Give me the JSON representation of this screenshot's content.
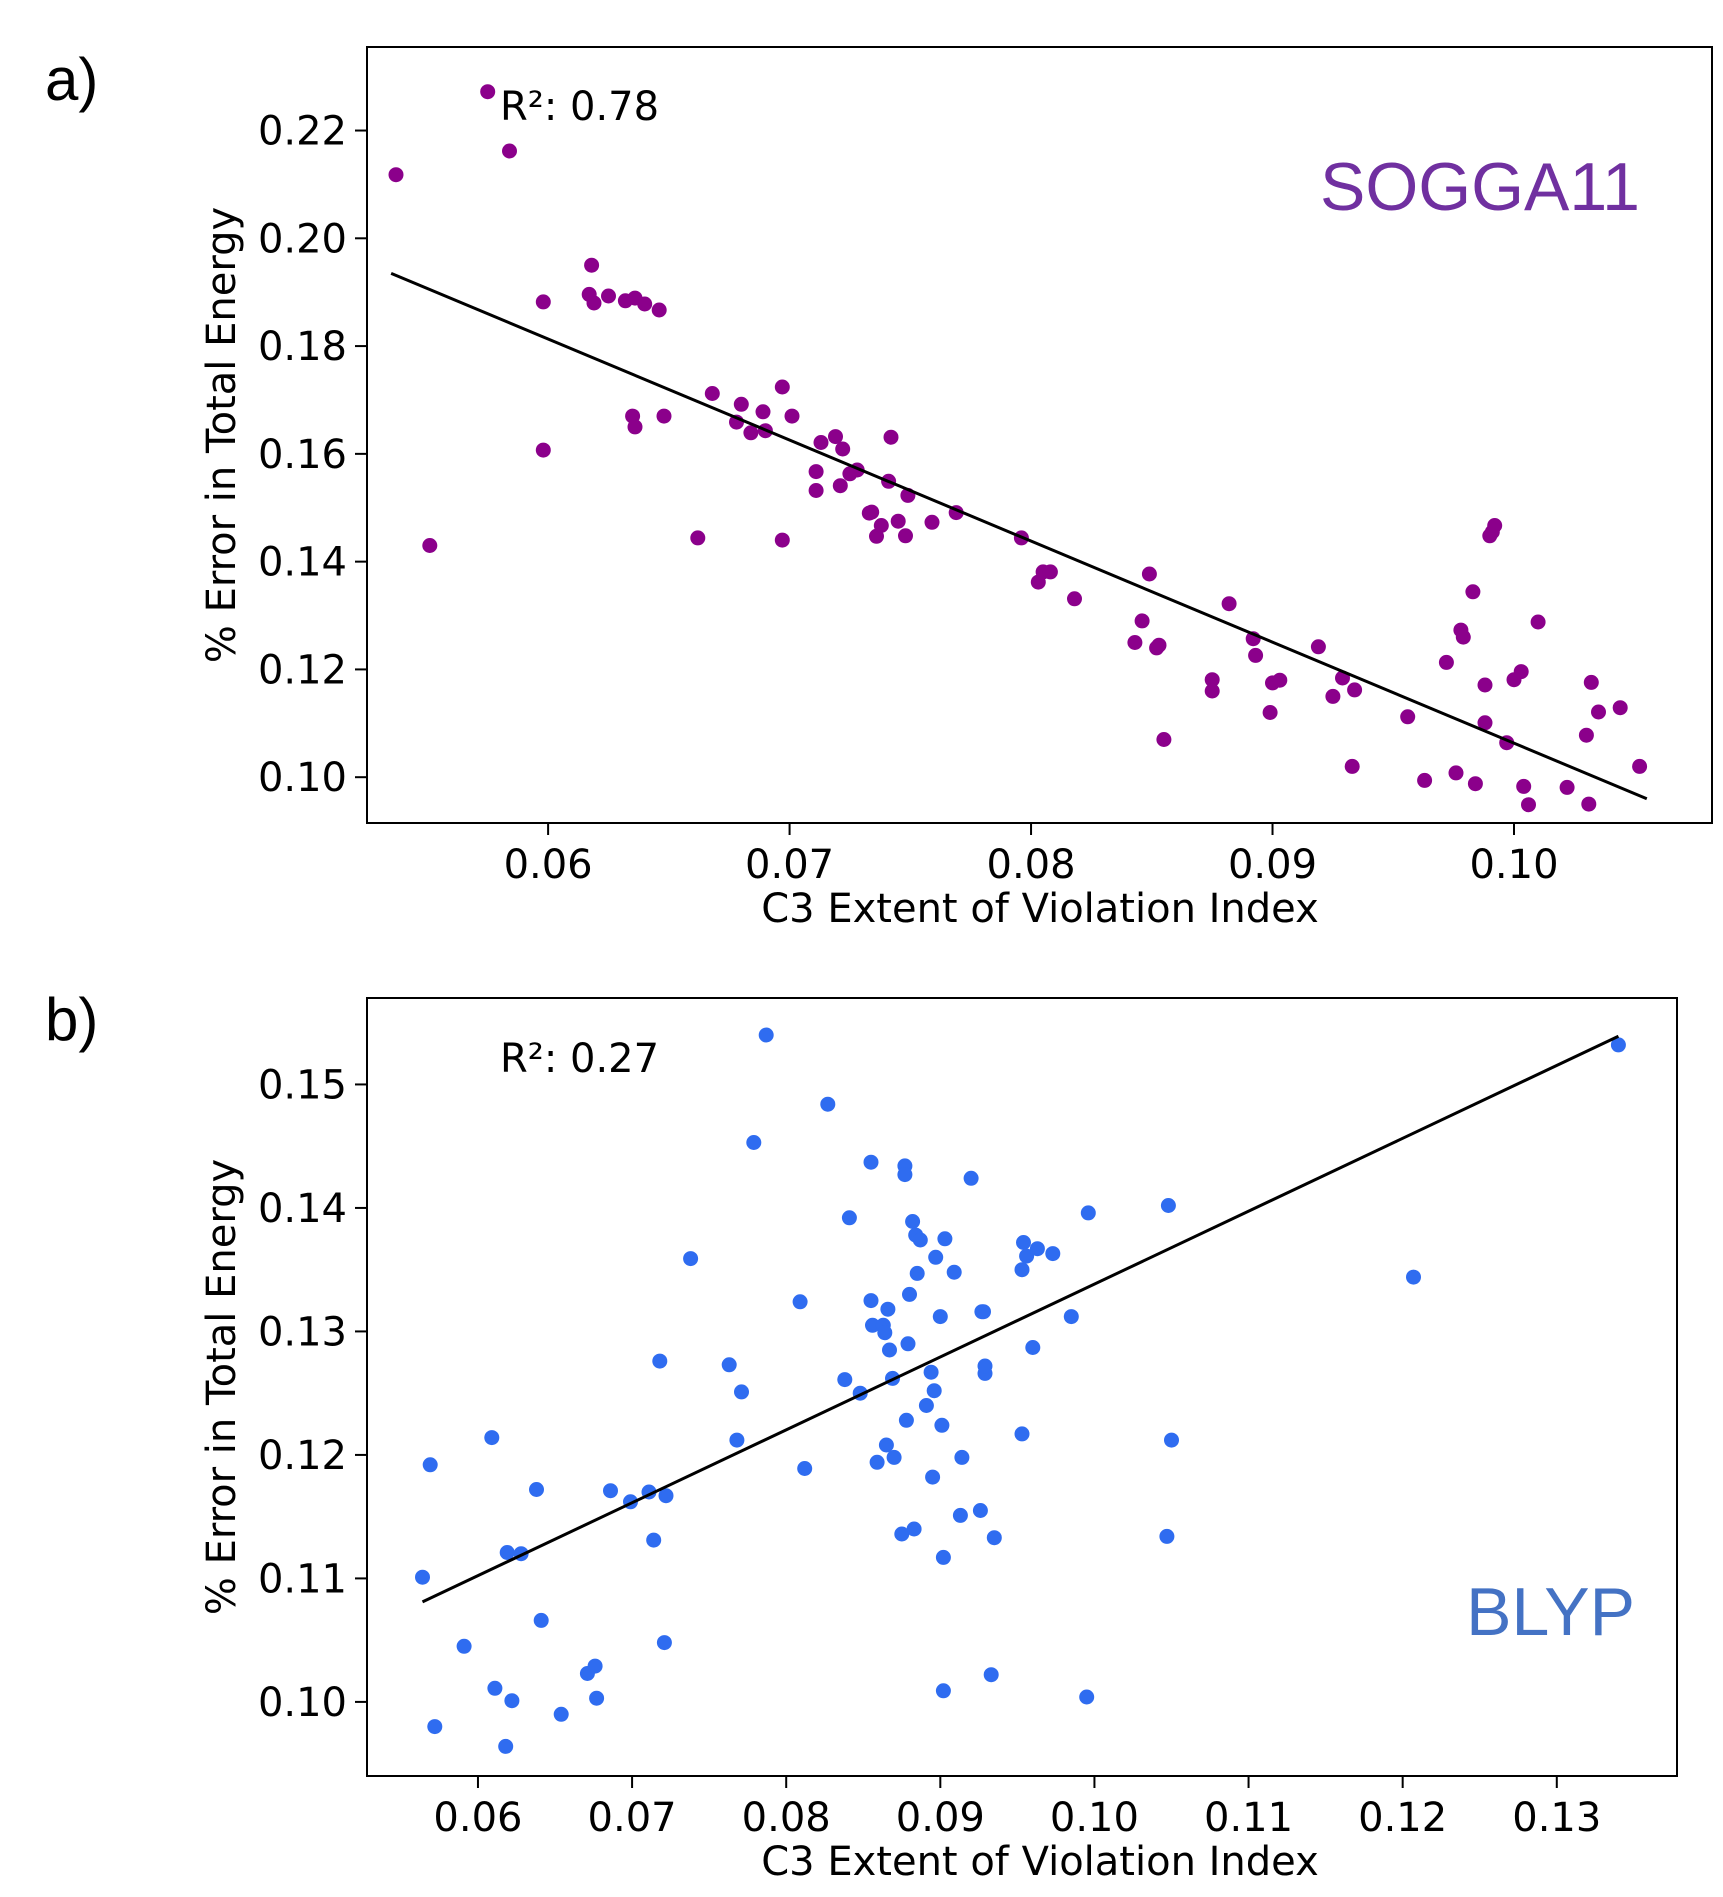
{
  "chart_data": [
    {
      "type": "scatter",
      "panel": "a)",
      "method_label": "SOGGA11",
      "method_color": "#7030a0",
      "point_color": "#8b008b",
      "r2_text": "R²: 0.78",
      "xlabel": "C3 Extent of Violation Index",
      "ylabel": "% Error in Total Energy",
      "xlim": [
        0.0525,
        0.1082
      ],
      "ylim": [
        0.0915,
        0.2355
      ],
      "xticks": [
        0.06,
        0.07,
        0.08,
        0.09,
        0.1
      ],
      "xtick_labels": [
        "0.06",
        "0.07",
        "0.08",
        "0.09",
        "0.10"
      ],
      "yticks": [
        0.1,
        0.12,
        0.14,
        0.16,
        0.18,
        0.2,
        0.22
      ],
      "ytick_labels": [
        "0.10",
        "0.12",
        "0.14",
        "0.16",
        "0.18",
        "0.20",
        "0.22"
      ],
      "fit_line": [
        [
          0.0535,
          0.1935
        ],
        [
          0.1055,
          0.096
        ]
      ],
      "points": [
        [
          0.0537,
          0.2118
        ],
        [
          0.0551,
          0.143
        ],
        [
          0.0575,
          0.2272
        ],
        [
          0.0584,
          0.2162
        ],
        [
          0.0598,
          0.1882
        ],
        [
          0.0598,
          0.1607
        ],
        [
          0.0618,
          0.195
        ],
        [
          0.0617,
          0.1896
        ],
        [
          0.0619,
          0.188
        ],
        [
          0.0625,
          0.1893
        ],
        [
          0.0632,
          0.1884
        ],
        [
          0.0636,
          0.1889
        ],
        [
          0.064,
          0.1878
        ],
        [
          0.0646,
          0.1867
        ],
        [
          0.0635,
          0.167
        ],
        [
          0.0636,
          0.165
        ],
        [
          0.0648,
          0.167
        ],
        [
          0.0662,
          0.1444
        ],
        [
          0.0668,
          0.1712
        ],
        [
          0.0678,
          0.1659
        ],
        [
          0.068,
          0.1692
        ],
        [
          0.0684,
          0.1639
        ],
        [
          0.0689,
          0.1678
        ],
        [
          0.069,
          0.1643
        ],
        [
          0.0697,
          0.1724
        ],
        [
          0.0697,
          0.144
        ],
        [
          0.0701,
          0.167
        ],
        [
          0.0711,
          0.1567
        ],
        [
          0.0711,
          0.1532
        ],
        [
          0.0713,
          0.1621
        ],
        [
          0.0719,
          0.1632
        ],
        [
          0.0721,
          0.1541
        ],
        [
          0.0722,
          0.1609
        ],
        [
          0.0725,
          0.1563
        ],
        [
          0.0728,
          0.157
        ],
        [
          0.0733,
          0.149
        ],
        [
          0.0734,
          0.1492
        ],
        [
          0.0736,
          0.1447
        ],
        [
          0.0738,
          0.1467
        ],
        [
          0.0741,
          0.1549
        ],
        [
          0.0742,
          0.1631
        ],
        [
          0.0745,
          0.1475
        ],
        [
          0.0748,
          0.1448
        ],
        [
          0.0749,
          0.1523
        ],
        [
          0.0759,
          0.1473
        ],
        [
          0.0769,
          0.1491
        ],
        [
          0.0796,
          0.1444
        ],
        [
          0.0803,
          0.1362
        ],
        [
          0.0805,
          0.1381
        ],
        [
          0.0808,
          0.1381
        ],
        [
          0.0818,
          0.1331
        ],
        [
          0.0843,
          0.125
        ],
        [
          0.0846,
          0.129
        ],
        [
          0.0849,
          0.1377
        ],
        [
          0.0852,
          0.124
        ],
        [
          0.0853,
          0.1245
        ],
        [
          0.0855,
          0.107
        ],
        [
          0.0875,
          0.1181
        ],
        [
          0.0875,
          0.116
        ],
        [
          0.0882,
          0.1322
        ],
        [
          0.0892,
          0.1257
        ],
        [
          0.0893,
          0.1226
        ],
        [
          0.0899,
          0.112
        ],
        [
          0.09,
          0.1175
        ],
        [
          0.0903,
          0.118
        ],
        [
          0.0919,
          0.1242
        ],
        [
          0.0925,
          0.115
        ],
        [
          0.0929,
          0.1184
        ],
        [
          0.0933,
          0.102
        ],
        [
          0.0934,
          0.1162
        ],
        [
          0.0956,
          0.1112
        ],
        [
          0.0963,
          0.0994
        ],
        [
          0.0972,
          0.1213
        ],
        [
          0.0976,
          0.1008
        ],
        [
          0.0978,
          0.1273
        ],
        [
          0.0979,
          0.126
        ],
        [
          0.0983,
          0.1344
        ],
        [
          0.0984,
          0.0988
        ],
        [
          0.0988,
          0.1171
        ],
        [
          0.0988,
          0.1101
        ],
        [
          0.099,
          0.1448
        ],
        [
          0.0991,
          0.1455
        ],
        [
          0.0992,
          0.1467
        ],
        [
          0.0997,
          0.1064
        ],
        [
          0.1,
          0.1181
        ],
        [
          0.1003,
          0.1196
        ],
        [
          0.1004,
          0.0983
        ],
        [
          0.1006,
          0.0949
        ],
        [
          0.101,
          0.1288
        ],
        [
          0.1022,
          0.0981
        ],
        [
          0.103,
          0.1078
        ],
        [
          0.1031,
          0.095
        ],
        [
          0.1032,
          0.1176
        ],
        [
          0.1035,
          0.1121
        ],
        [
          0.1044,
          0.1129
        ],
        [
          0.1052,
          0.102
        ]
      ]
    },
    {
      "type": "scatter",
      "panel": "b)",
      "method_label": "BLYP",
      "method_color": "#4472c4",
      "point_color": "#2f6cf0",
      "r2_text": "R²: 0.27",
      "xlabel": "C3 Extent of Violation Index",
      "ylabel": "% Error in Total Energy",
      "xlim": [
        0.0528,
        0.1378
      ],
      "ylim": [
        0.094,
        0.157
      ],
      "xticks": [
        0.06,
        0.07,
        0.08,
        0.09,
        0.1,
        0.11,
        0.12,
        0.13
      ],
      "xtick_labels": [
        "0.06",
        "0.07",
        "0.08",
        "0.09",
        "0.10",
        "0.11",
        "0.12",
        "0.13"
      ],
      "yticks": [
        0.1,
        0.11,
        0.12,
        0.13,
        0.14,
        0.15
      ],
      "ytick_labels": [
        "0.10",
        "0.11",
        "0.12",
        "0.13",
        "0.14",
        "0.15"
      ],
      "fit_line": [
        [
          0.0564,
          0.1081
        ],
        [
          0.134,
          0.1539
        ]
      ],
      "points": [
        [
          0.0564,
          0.1101
        ],
        [
          0.0569,
          0.1192
        ],
        [
          0.0572,
          0.098
        ],
        [
          0.0591,
          0.1045
        ],
        [
          0.0609,
          0.1214
        ],
        [
          0.0611,
          0.1011
        ],
        [
          0.0618,
          0.0964
        ],
        [
          0.0619,
          0.1121
        ],
        [
          0.0622,
          0.1001
        ],
        [
          0.0628,
          0.112
        ],
        [
          0.0638,
          0.1172
        ],
        [
          0.0641,
          0.1066
        ],
        [
          0.0654,
          0.099
        ],
        [
          0.0671,
          0.1023
        ],
        [
          0.0676,
          0.1029
        ],
        [
          0.0677,
          0.1003
        ],
        [
          0.0686,
          0.1171
        ],
        [
          0.0699,
          0.1162
        ],
        [
          0.0711,
          0.117
        ],
        [
          0.0714,
          0.1131
        ],
        [
          0.0718,
          0.1276
        ],
        [
          0.0721,
          0.1048
        ],
        [
          0.0722,
          0.1167
        ],
        [
          0.0738,
          0.1359
        ],
        [
          0.0763,
          0.1273
        ],
        [
          0.0768,
          0.1212
        ],
        [
          0.0771,
          0.1251
        ],
        [
          0.0779,
          0.1453
        ],
        [
          0.0787,
          0.154
        ],
        [
          0.0809,
          0.1324
        ],
        [
          0.0812,
          0.1189
        ],
        [
          0.0827,
          0.1484
        ],
        [
          0.0838,
          0.1261
        ],
        [
          0.0841,
          0.1392
        ],
        [
          0.0848,
          0.125
        ],
        [
          0.0855,
          0.1437
        ],
        [
          0.0855,
          0.1325
        ],
        [
          0.0856,
          0.1305
        ],
        [
          0.0859,
          0.1194
        ],
        [
          0.0863,
          0.1305
        ],
        [
          0.0864,
          0.1299
        ],
        [
          0.0865,
          0.1208
        ],
        [
          0.0866,
          0.1318
        ],
        [
          0.0867,
          0.1285
        ],
        [
          0.0869,
          0.1262
        ],
        [
          0.087,
          0.1198
        ],
        [
          0.0875,
          0.1136
        ],
        [
          0.0877,
          0.1434
        ],
        [
          0.0877,
          0.1427
        ],
        [
          0.0878,
          0.1228
        ],
        [
          0.0879,
          0.129
        ],
        [
          0.088,
          0.133
        ],
        [
          0.0882,
          0.1389
        ],
        [
          0.0883,
          0.114
        ],
        [
          0.0884,
          0.1378
        ],
        [
          0.0885,
          0.1347
        ],
        [
          0.0887,
          0.1374
        ],
        [
          0.0891,
          0.124
        ],
        [
          0.0894,
          0.1267
        ],
        [
          0.0895,
          0.1182
        ],
        [
          0.0896,
          0.1252
        ],
        [
          0.0897,
          0.136
        ],
        [
          0.09,
          0.1312
        ],
        [
          0.0901,
          0.1224
        ],
        [
          0.0902,
          0.1117
        ],
        [
          0.0902,
          0.1009
        ],
        [
          0.0903,
          0.1375
        ],
        [
          0.0909,
          0.1348
        ],
        [
          0.0913,
          0.1151
        ],
        [
          0.0914,
          0.1198
        ],
        [
          0.092,
          0.1424
        ],
        [
          0.0926,
          0.1155
        ],
        [
          0.0927,
          0.1316
        ],
        [
          0.0928,
          0.1316
        ],
        [
          0.0929,
          0.1266
        ],
        [
          0.0929,
          0.1272
        ],
        [
          0.0933,
          0.1022
        ],
        [
          0.0935,
          0.1133
        ],
        [
          0.0953,
          0.135
        ],
        [
          0.0953,
          0.1217
        ],
        [
          0.0954,
          0.1372
        ],
        [
          0.0956,
          0.1361
        ],
        [
          0.096,
          0.1287
        ],
        [
          0.0963,
          0.1367
        ],
        [
          0.0973,
          0.1363
        ],
        [
          0.0985,
          0.1312
        ],
        [
          0.0995,
          0.1004
        ],
        [
          0.0996,
          0.1396
        ],
        [
          0.1047,
          0.1134
        ],
        [
          0.1048,
          0.1402
        ],
        [
          0.105,
          0.1212
        ],
        [
          0.1207,
          0.1344
        ],
        [
          0.134,
          0.1532
        ]
      ]
    }
  ]
}
